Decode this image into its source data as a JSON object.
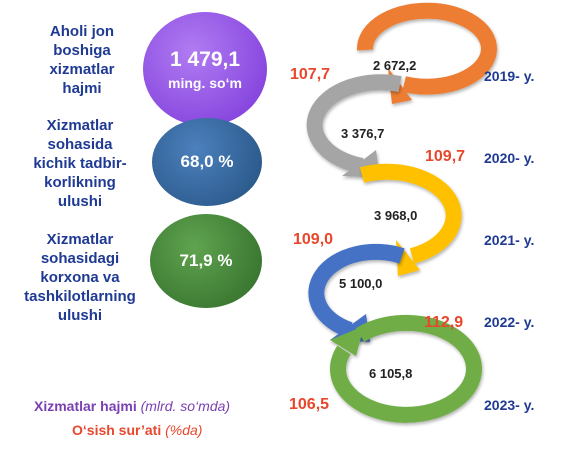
{
  "indicators": [
    {
      "label": "Aholi jon boshiga xizmatlar hajmi",
      "value": "1 479,1",
      "unit": "ming. so‘m",
      "color": "#8b47e6"
    },
    {
      "label": "Xizmatlar sohasida kichik tadbirkorlikning ulushi",
      "value": "68,0 %",
      "color": "#2f6098"
    },
    {
      "label": "Xizmatlar sohasidagi korxona va tashkilotlarning ulushi",
      "value": "71,9 %",
      "color": "#3a7d32"
    }
  ],
  "label_lines": [
    [
      "Aholi jon",
      "boshiga",
      "xizmatlar",
      "hajmi"
    ],
    [
      "Xizmatlar",
      "sohasida",
      "kichik tadbir-",
      "korlikning",
      "ulushi"
    ],
    [
      "Xizmatlar",
      "sohasidagi",
      "korxona va",
      "tashkilotlarning",
      "ulushi"
    ]
  ],
  "years": [
    {
      "year": "2019- y.",
      "volume": "2 672,2",
      "rate": "107,7",
      "color": "#ed7d31"
    },
    {
      "year": "2020- y.",
      "volume": "3 376,7",
      "rate": "109,7",
      "color": "#a5a5a5"
    },
    {
      "year": "2021- y.",
      "volume": "3 968,0",
      "rate": "109,0",
      "color": "#ffc000"
    },
    {
      "year": "2022- y.",
      "volume": "5 100,0",
      "rate": "112,9",
      "color": "#4472c4"
    },
    {
      "year": "2023- y.",
      "volume": "6 105,8",
      "rate": "106,5",
      "color": "#70ad47"
    }
  ],
  "legend": {
    "volume_label": "Xizmatlar hajmi",
    "volume_unit": "(mlrd. so‘mda)",
    "rate_label": "O‘sish sur’ati",
    "rate_unit": "(%da)"
  }
}
